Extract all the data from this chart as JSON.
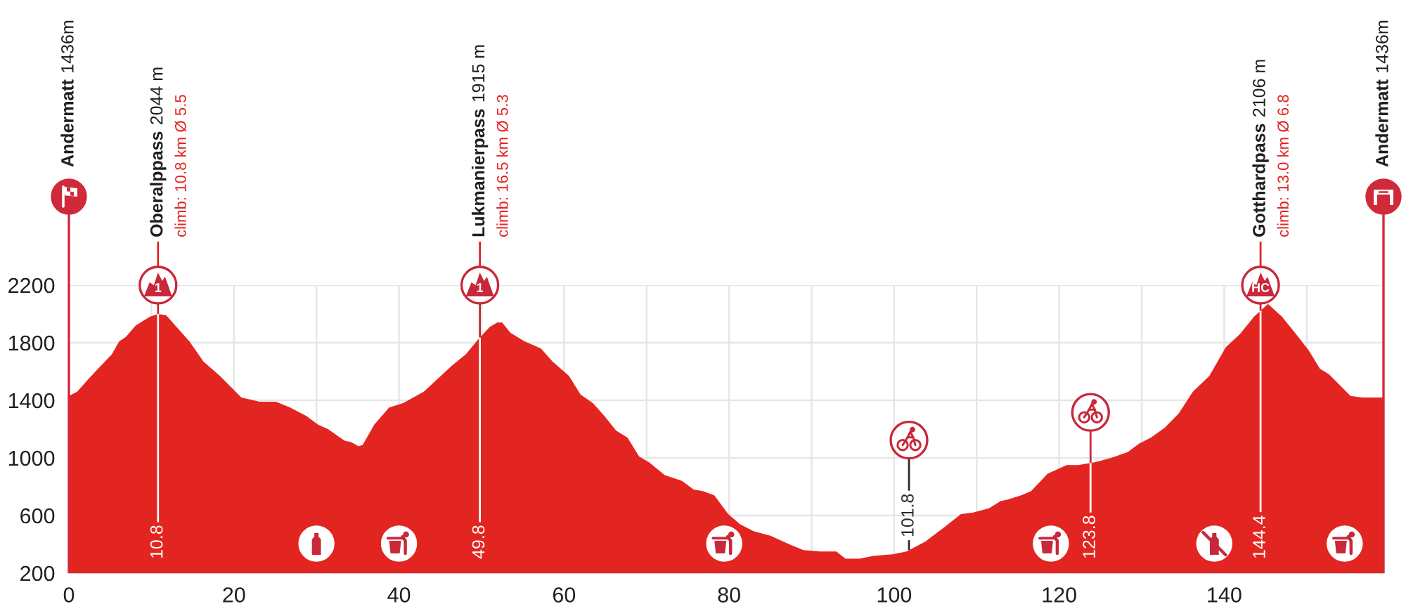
{
  "chart_data": {
    "type": "area",
    "x": [
      0,
      1.0,
      2.4,
      5.2,
      6.1,
      6.9,
      8.1,
      9.8,
      10.8,
      11.8,
      13.2,
      14.6,
      16.3,
      18.3,
      20.9,
      23.1,
      25.1,
      26.8,
      28.8,
      30.2,
      31.4,
      33.4,
      34.2,
      35.1,
      35.6,
      37.0,
      38.8,
      40.5,
      43.0,
      44.7,
      46.4,
      48.1,
      49.7,
      51.0,
      51.9,
      52.5,
      53.5,
      55.2,
      57.2,
      58.6,
      60.6,
      62.0,
      63.5,
      64.9,
      66.3,
      67.7,
      69.1,
      70.3,
      72.2,
      74.3,
      75.7,
      76.8,
      78.2,
      79.9,
      81.3,
      83.0,
      85.0,
      87.3,
      89.0,
      91.0,
      93.0,
      94.1,
      95.8,
      97.5,
      99.8,
      101.5,
      103.8,
      106.1,
      108.1,
      109.5,
      111.5,
      112.9,
      113.7,
      115.4,
      116.6,
      118.6,
      120.9,
      122.3,
      124.3,
      126.3,
      128.3,
      129.7,
      131.1,
      132.8,
      134.5,
      136.2,
      138.2,
      140.2,
      141.9,
      143.6,
      145.3,
      147.0,
      148.7,
      150.2,
      151.6,
      152.7,
      155.3,
      156.7,
      159.3
    ],
    "series": [
      {
        "color": "#e32521",
        "values": [
          1430,
          1460,
          1550,
          1720,
          1810,
          1840,
          1920,
          1980,
          2000,
          1990,
          1900,
          1810,
          1670,
          1570,
          1420,
          1390,
          1390,
          1350,
          1290,
          1230,
          1200,
          1120,
          1110,
          1080,
          1090,
          1230,
          1350,
          1380,
          1460,
          1550,
          1640,
          1720,
          1830,
          1910,
          1940,
          1940,
          1870,
          1810,
          1760,
          1670,
          1570,
          1440,
          1380,
          1290,
          1190,
          1140,
          1010,
          970,
          880,
          840,
          780,
          770,
          740,
          610,
          540,
          490,
          460,
          400,
          360,
          350,
          350,
          300,
          300,
          320,
          330,
          350,
          420,
          520,
          610,
          620,
          650,
          700,
          710,
          740,
          770,
          890,
          950,
          950,
          970,
          1000,
          1040,
          1100,
          1140,
          1210,
          1310,
          1460,
          1570,
          1770,
          1860,
          1980,
          2070,
          1980,
          1860,
          1750,
          1620,
          1580,
          1430,
          1420,
          1420
        ]
      }
    ],
    "xlim": [
      0,
      159.3
    ],
    "ylim": [
      200,
      2200
    ],
    "xticks": [
      0,
      {
        "value": 10,
        "label": null
      },
      20,
      {
        "value": 30,
        "label": null
      },
      40,
      {
        "value": 50,
        "label": null
      },
      60,
      {
        "value": 70,
        "label": null
      },
      80,
      {
        "value": 90,
        "label": null
      },
      100,
      {
        "value": 110,
        "label": null
      },
      120,
      {
        "value": 130,
        "label": null
      },
      140,
      {
        "value": 150,
        "label": null
      }
    ],
    "yticks": [
      200,
      600,
      1000,
      1400,
      1800,
      2200
    ],
    "grid": true,
    "ref_lines": [
      {
        "axis": "x",
        "value": 0,
        "color": "#d0293a"
      },
      {
        "axis": "x",
        "value": 10.8,
        "label": "10.8",
        "color": "#ffffff"
      },
      {
        "axis": "x",
        "value": 49.8,
        "label": "49.8",
        "color": "#ffffff"
      },
      {
        "axis": "x",
        "value": 144.4,
        "label": "144.4",
        "color": "#ffffff"
      },
      {
        "axis": "x",
        "value": 159.3,
        "color": "#d0293a"
      }
    ],
    "annotations": [
      "Andermatt",
      "1436m",
      "Oberalppass",
      "2044 m",
      "climb: 10.8 km Ø 5.5",
      "1",
      "Lukmanierpass",
      "1915 m",
      "climb: 16.5 km Ø 5.3",
      "1",
      {
        "text": "101.8",
        "x": 101.8,
        "y": 360
      },
      {
        "text": "123.8",
        "x": 123.8,
        "y": 965
      },
      "Gotthardpass",
      "2106 m",
      "climb: 13.0 km Ø 6.8",
      "HC",
      "Andermatt",
      "1436m"
    ]
  }
}
